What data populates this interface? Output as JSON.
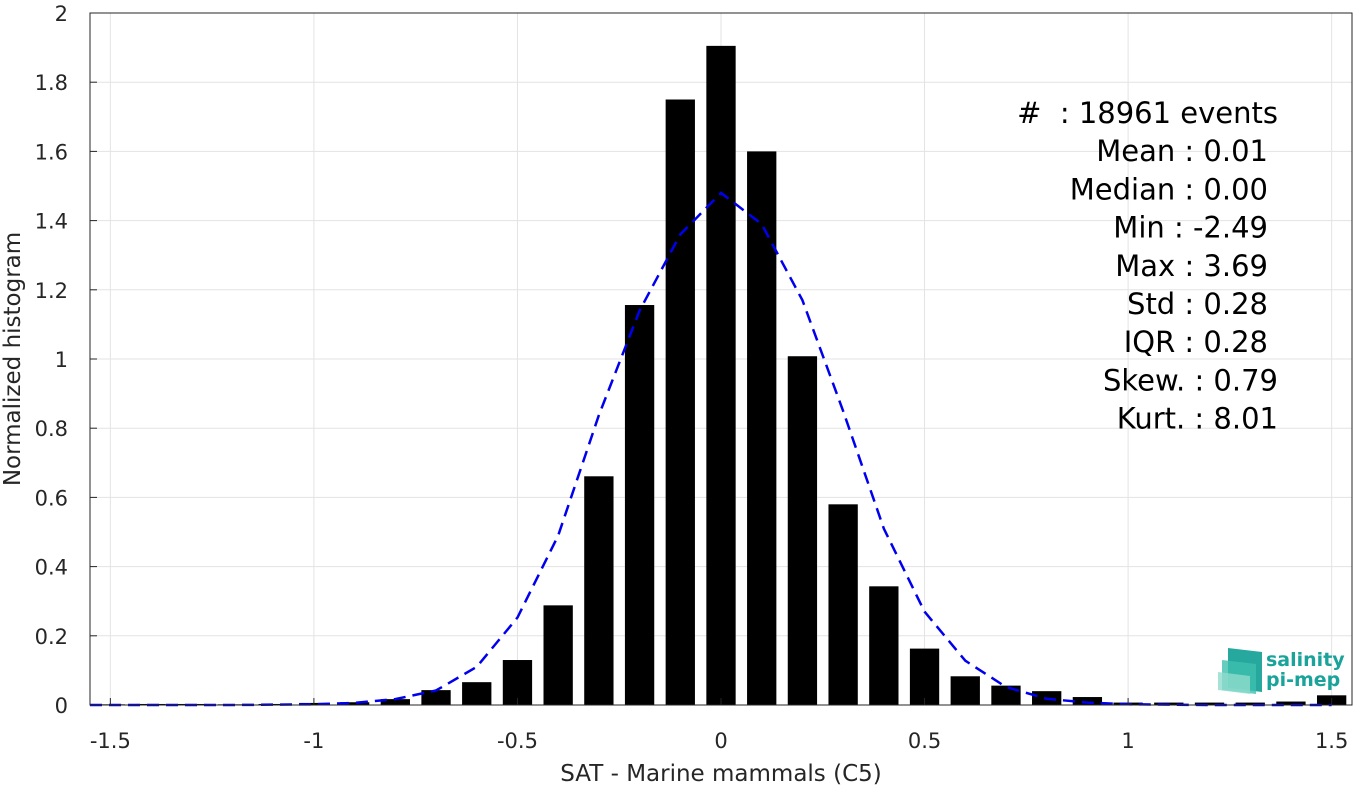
{
  "chart_data": {
    "type": "bar",
    "xlabel": "SAT - Marine mammals (C5)",
    "ylabel": "Normalized histogram",
    "xlim": [
      -1.55,
      1.55
    ],
    "ylim": [
      0,
      2
    ],
    "xticks": [
      -1.5,
      -1,
      -0.5,
      0,
      0.5,
      1,
      1.5
    ],
    "xtick_labels": [
      "-1.5",
      "-1",
      "-0.5",
      "0",
      "0.5",
      "1",
      "1.5"
    ],
    "yticks": [
      0,
      0.2,
      0.4,
      0.6,
      0.8,
      1,
      1.2,
      1.4,
      1.6,
      1.8,
      2
    ],
    "ytick_labels": [
      "0",
      "0.2",
      "0.4",
      "0.6",
      "0.8",
      "1",
      "1.2",
      "1.4",
      "1.6",
      "1.8",
      "2"
    ],
    "grid": true,
    "bin_width": 0.1,
    "bar_color": "#000000",
    "bins": {
      "x": [
        -1.5,
        -1.4,
        -1.3,
        -1.2,
        -1.1,
        -1.0,
        -0.9,
        -0.8,
        -0.7,
        -0.6,
        -0.5,
        -0.4,
        -0.3,
        -0.2,
        -0.1,
        0.0,
        0.1,
        0.2,
        0.3,
        0.4,
        0.5,
        0.6,
        0.7,
        0.8,
        0.9,
        1.0,
        1.1,
        1.2,
        1.3,
        1.4,
        1.5
      ],
      "values": [
        0.002,
        0.003,
        0.003,
        0.002,
        0.003,
        0.006,
        0.008,
        0.017,
        0.043,
        0.066,
        0.13,
        0.288,
        0.661,
        1.156,
        1.75,
        1.905,
        1.6,
        1.008,
        0.58,
        0.343,
        0.163,
        0.083,
        0.056,
        0.04,
        0.023,
        0.007,
        0.007,
        0.007,
        0.007,
        0.01,
        0.028
      ]
    },
    "fit_curve": {
      "style": "dashed",
      "color": "#0000ee",
      "x": [
        -1.55,
        -1.4,
        -1.2,
        -1.0,
        -0.9,
        -0.8,
        -0.7,
        -0.6,
        -0.5,
        -0.4,
        -0.3,
        -0.2,
        -0.1,
        0.0,
        0.1,
        0.2,
        0.3,
        0.4,
        0.5,
        0.6,
        0.7,
        0.8,
        0.9,
        1.0,
        1.2,
        1.4,
        1.5
      ],
      "y": [
        0.0,
        0.0,
        0.0,
        0.002,
        0.006,
        0.017,
        0.042,
        0.11,
        0.253,
        0.49,
        0.838,
        1.14,
        1.36,
        1.48,
        1.39,
        1.17,
        0.85,
        0.51,
        0.27,
        0.128,
        0.052,
        0.018,
        0.007,
        0.002,
        0.0,
        0.0,
        0.0
      ]
    },
    "annotations": [
      "#  : 18961 events",
      "Mean : 0.01",
      "Median : 0.00",
      "Min : -2.49",
      "Max : 3.69",
      "Std : 0.28",
      "IQR : 0.28",
      "Skew. : 0.79",
      "Kurt. : 8.01"
    ]
  },
  "logo": {
    "line1": "salinity",
    "line2": "pi-mep",
    "color": "#1aa39a"
  }
}
